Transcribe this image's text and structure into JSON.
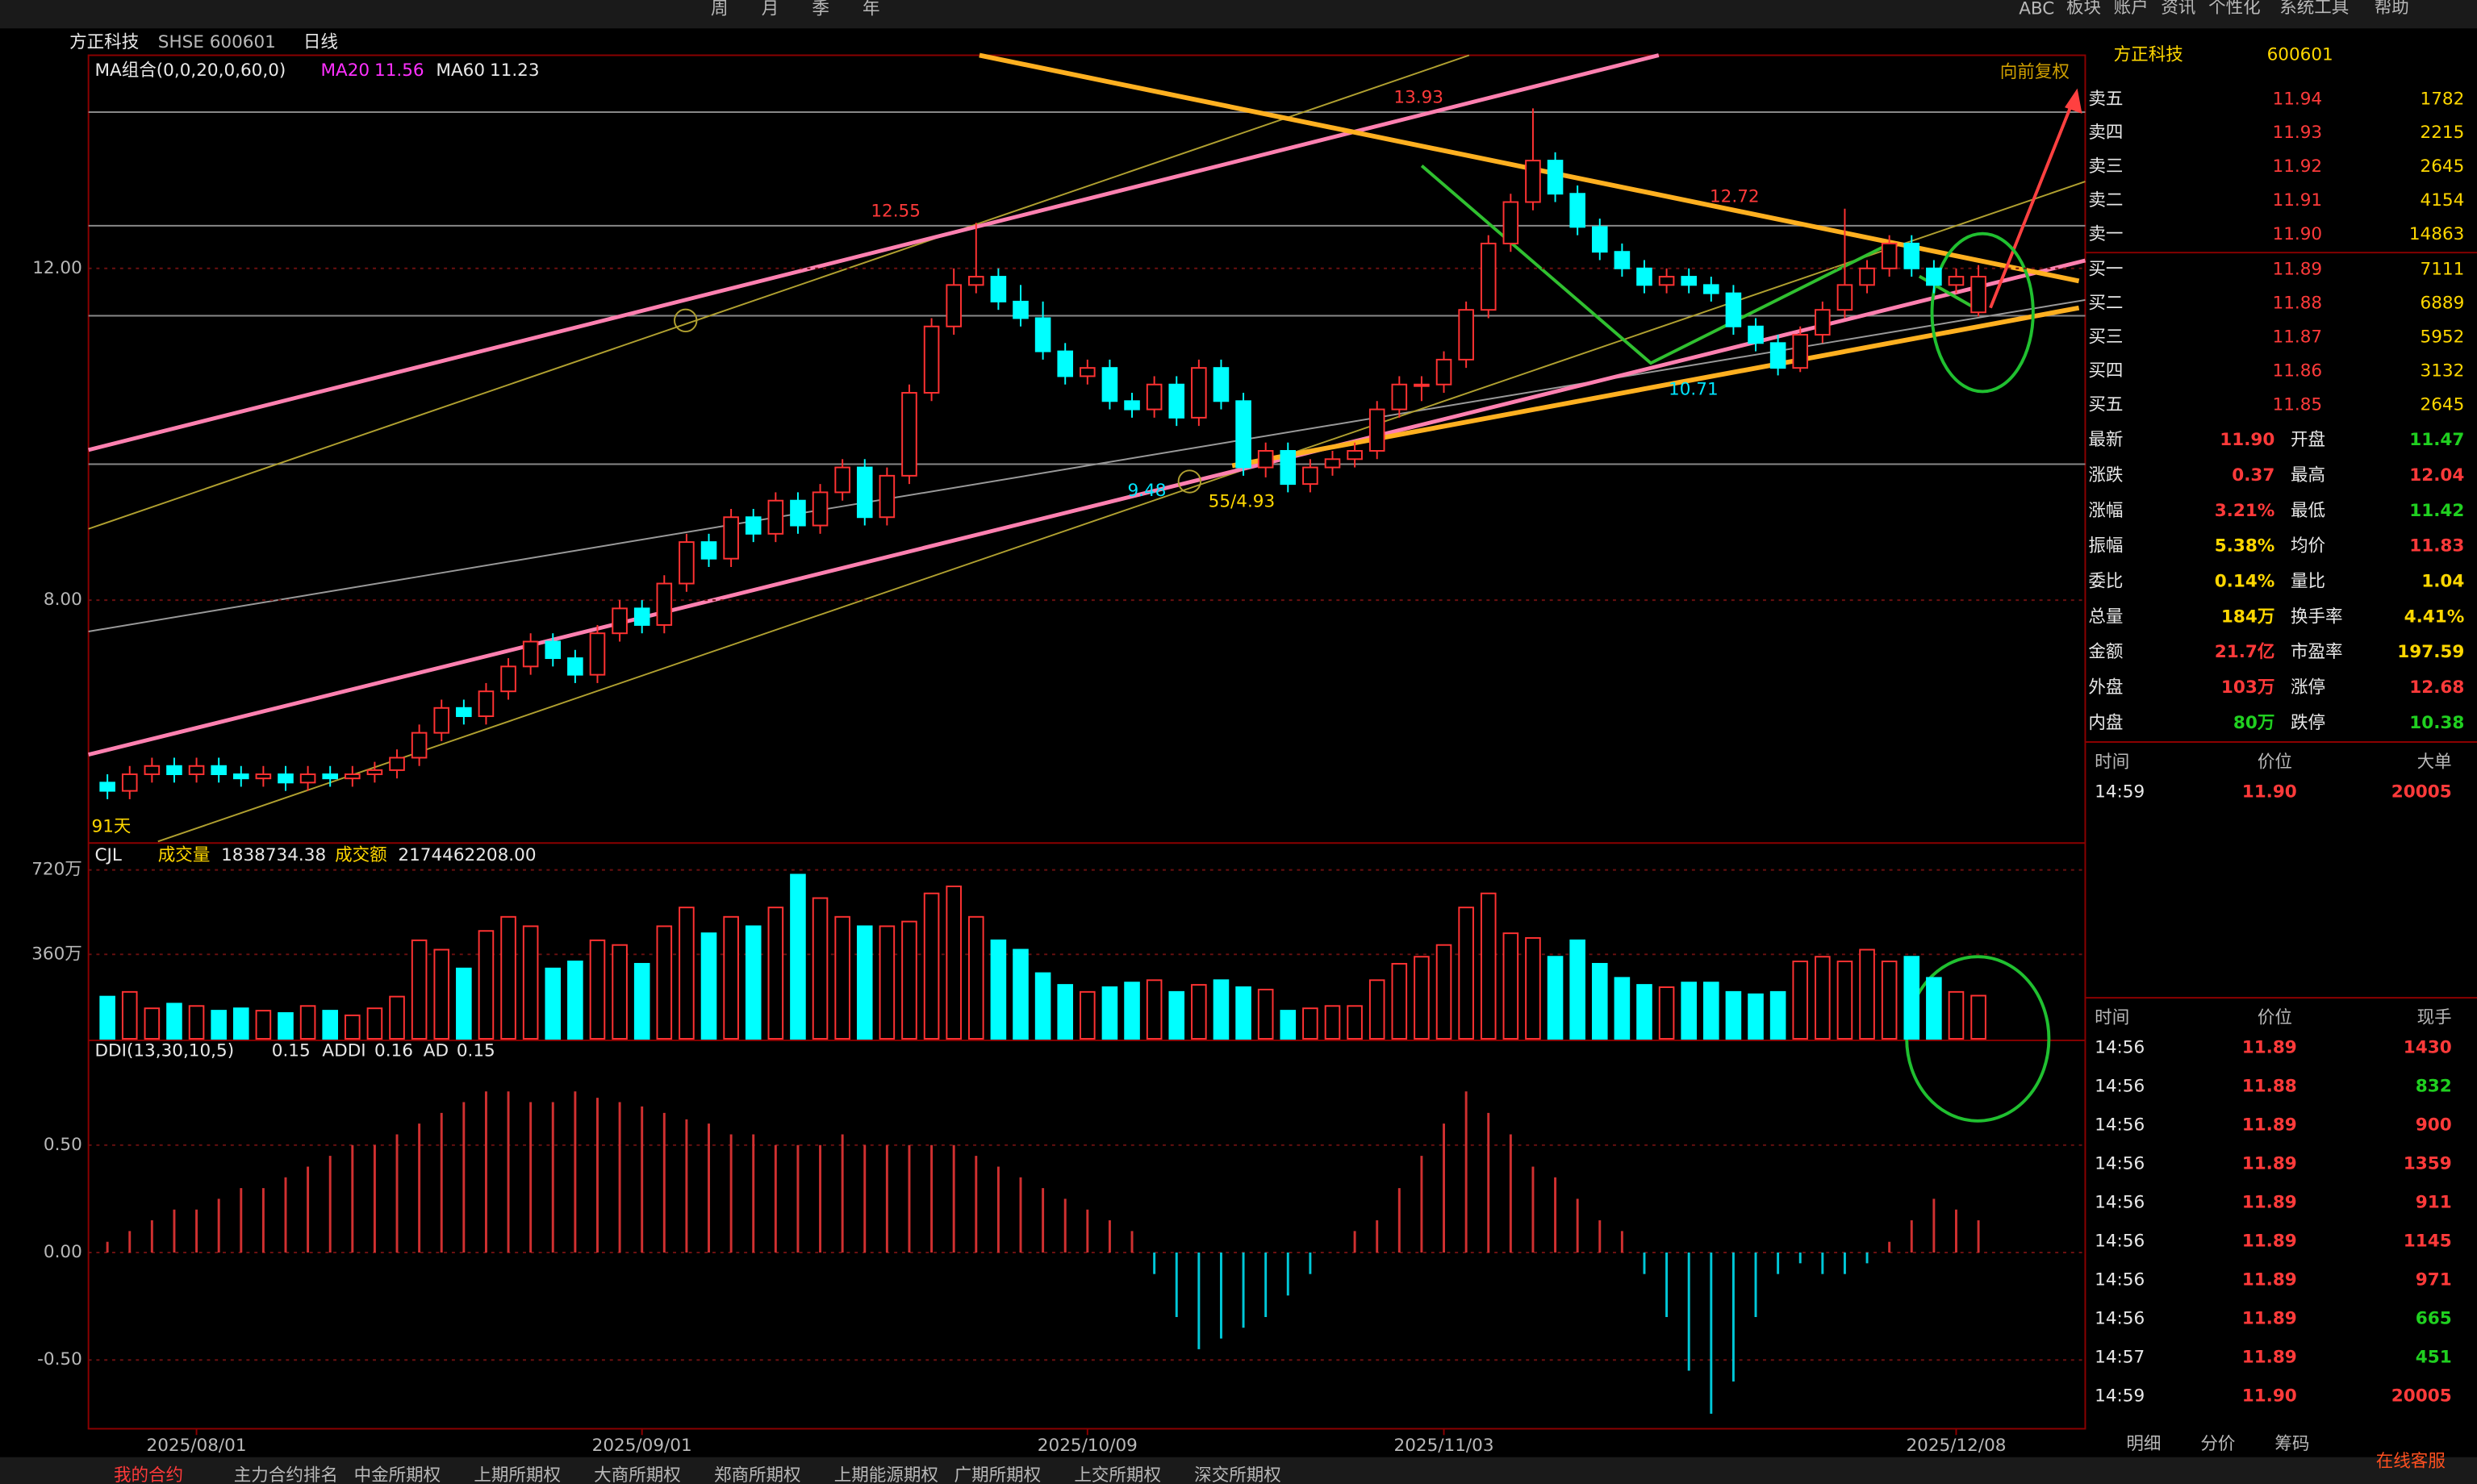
{
  "toolbar": {
    "items": [
      "周",
      "月",
      "季",
      "年",
      "ABC"
    ],
    "right_menu": [
      "板块",
      "账户",
      "资讯",
      "个性化",
      "系统工具",
      "帮助"
    ]
  },
  "header": {
    "name": "方正科技",
    "code": "SHSE 600601",
    "period": "日线"
  },
  "chart_data": [
    {
      "type": "candlestick",
      "legend": "MA组合(0,0,20,0,60,0)",
      "ma20_label": "MA20",
      "ma20": 11.56,
      "ma60_label": "MA60",
      "ma60": 11.23,
      "adjust": "向前复权",
      "days_label": "91天",
      "annotations": [
        "12.55",
        "13.93",
        "12.72",
        "10.71",
        "9.48",
        "55/4.93"
      ],
      "ylim": [
        5.09,
        14.57
      ],
      "yticks": [
        {
          "value": 12,
          "label": "12.00"
        },
        {
          "value": 8,
          "label": "8.00"
        }
      ],
      "xticks": [
        {
          "value": 4,
          "label": "2025/08/01"
        },
        {
          "value": 24,
          "label": "2025/09/01"
        },
        {
          "value": 44,
          "label": "2025/10/09"
        },
        {
          "value": 60,
          "label": "2025/11/03"
        },
        {
          "value": 83,
          "label": "2025/12/08"
        }
      ],
      "up_color": "#ff3232",
      "down_color": "#00ffff",
      "candles": [
        [
          5.8,
          5.9,
          5.6,
          5.7
        ],
        [
          5.7,
          6.0,
          5.6,
          5.9
        ],
        [
          5.9,
          6.1,
          5.8,
          6.0
        ],
        [
          6.0,
          6.1,
          5.8,
          5.9
        ],
        [
          5.9,
          6.1,
          5.8,
          6.0
        ],
        [
          6.0,
          6.1,
          5.8,
          5.9
        ],
        [
          5.9,
          6.0,
          5.75,
          5.85
        ],
        [
          5.85,
          6.0,
          5.75,
          5.9
        ],
        [
          5.9,
          6.0,
          5.7,
          5.8
        ],
        [
          5.8,
          6.0,
          5.7,
          5.9
        ],
        [
          5.9,
          6.0,
          5.75,
          5.85
        ],
        [
          5.85,
          6.0,
          5.75,
          5.9
        ],
        [
          5.9,
          6.05,
          5.8,
          5.95
        ],
        [
          5.95,
          6.2,
          5.85,
          6.1
        ],
        [
          6.1,
          6.5,
          6.0,
          6.4
        ],
        [
          6.4,
          6.8,
          6.3,
          6.7
        ],
        [
          6.7,
          6.8,
          6.5,
          6.6
        ],
        [
          6.6,
          7.0,
          6.5,
          6.9
        ],
        [
          6.9,
          7.3,
          6.8,
          7.2
        ],
        [
          7.2,
          7.6,
          7.1,
          7.5
        ],
        [
          7.5,
          7.6,
          7.2,
          7.3
        ],
        [
          7.3,
          7.4,
          7.0,
          7.1
        ],
        [
          7.1,
          7.7,
          7.0,
          7.6
        ],
        [
          7.6,
          8.0,
          7.5,
          7.9
        ],
        [
          7.9,
          8.0,
          7.6,
          7.7
        ],
        [
          7.7,
          8.3,
          7.6,
          8.2
        ],
        [
          8.2,
          8.8,
          8.1,
          8.7
        ],
        [
          8.7,
          8.8,
          8.4,
          8.5
        ],
        [
          8.5,
          9.1,
          8.4,
          9.0
        ],
        [
          9.0,
          9.1,
          8.7,
          8.8
        ],
        [
          8.8,
          9.3,
          8.7,
          9.2
        ],
        [
          9.2,
          9.3,
          8.8,
          8.9
        ],
        [
          8.9,
          9.4,
          8.8,
          9.3
        ],
        [
          9.3,
          9.7,
          9.2,
          9.6
        ],
        [
          9.6,
          9.7,
          8.9,
          9.0
        ],
        [
          9.0,
          9.6,
          8.9,
          9.5
        ],
        [
          9.5,
          10.6,
          9.4,
          10.5
        ],
        [
          10.5,
          11.4,
          10.4,
          11.3
        ],
        [
          11.3,
          12.0,
          11.2,
          11.8
        ],
        [
          11.8,
          12.55,
          11.7,
          11.9
        ],
        [
          11.9,
          12.0,
          11.5,
          11.6
        ],
        [
          11.6,
          11.8,
          11.3,
          11.4
        ],
        [
          11.4,
          11.6,
          10.9,
          11.0
        ],
        [
          11.0,
          11.1,
          10.6,
          10.7
        ],
        [
          10.7,
          10.9,
          10.6,
          10.8
        ],
        [
          10.8,
          10.9,
          10.3,
          10.4
        ],
        [
          10.4,
          10.5,
          10.2,
          10.3
        ],
        [
          10.3,
          10.7,
          10.2,
          10.6
        ],
        [
          10.6,
          10.7,
          10.1,
          10.2
        ],
        [
          10.2,
          10.9,
          10.1,
          10.8
        ],
        [
          10.8,
          10.9,
          10.3,
          10.4
        ],
        [
          10.4,
          10.5,
          9.5,
          9.6
        ],
        [
          9.6,
          9.9,
          9.48,
          9.8
        ],
        [
          9.8,
          9.9,
          9.3,
          9.4
        ],
        [
          9.4,
          9.7,
          9.3,
          9.6
        ],
        [
          9.6,
          9.8,
          9.5,
          9.7
        ],
        [
          9.7,
          9.9,
          9.6,
          9.8
        ],
        [
          9.8,
          10.4,
          9.7,
          10.3
        ],
        [
          10.3,
          10.7,
          10.2,
          10.6
        ],
        [
          10.6,
          10.7,
          10.4,
          10.6
        ],
        [
          10.6,
          11.0,
          10.5,
          10.9
        ],
        [
          10.9,
          11.6,
          10.8,
          11.5
        ],
        [
          11.5,
          12.4,
          11.4,
          12.3
        ],
        [
          12.3,
          12.9,
          12.2,
          12.8
        ],
        [
          12.8,
          13.93,
          12.7,
          13.3
        ],
        [
          13.3,
          13.4,
          12.8,
          12.9
        ],
        [
          12.9,
          13.0,
          12.4,
          12.5
        ],
        [
          12.5,
          12.6,
          12.1,
          12.2
        ],
        [
          12.2,
          12.3,
          11.9,
          12.0
        ],
        [
          12.0,
          12.1,
          11.7,
          11.8
        ],
        [
          11.8,
          12.0,
          11.7,
          11.9
        ],
        [
          11.9,
          12.0,
          11.7,
          11.8
        ],
        [
          11.8,
          11.9,
          11.6,
          11.7
        ],
        [
          11.7,
          11.8,
          11.2,
          11.3
        ],
        [
          11.3,
          11.4,
          11.0,
          11.1
        ],
        [
          11.1,
          11.2,
          10.71,
          10.8
        ],
        [
          10.8,
          11.3,
          10.75,
          11.2
        ],
        [
          11.2,
          11.6,
          11.1,
          11.5
        ],
        [
          11.5,
          12.72,
          11.4,
          11.8
        ],
        [
          11.8,
          12.1,
          11.7,
          12.0
        ],
        [
          12.0,
          12.4,
          11.9,
          12.3
        ],
        [
          12.3,
          12.4,
          11.9,
          12.0
        ],
        [
          12.0,
          12.1,
          11.7,
          11.8
        ],
        [
          11.8,
          12.0,
          11.7,
          11.9
        ],
        [
          11.47,
          12.04,
          11.42,
          11.9
        ]
      ]
    },
    {
      "type": "bar",
      "legend": "CJL",
      "volume_label": "成交量",
      "volume": 1838734.38,
      "amount_label": "成交额",
      "amount": 2174462208,
      "amount_label_text": "2174462208.00",
      "ylim": [
        0,
        828
      ],
      "yticks": [
        {
          "value": 720,
          "label": "720万"
        },
        {
          "value": 360,
          "label": "360万"
        }
      ],
      "values": [
        180,
        200,
        130,
        150,
        140,
        120,
        130,
        120,
        110,
        140,
        120,
        100,
        130,
        180,
        420,
        380,
        300,
        460,
        520,
        480,
        300,
        330,
        420,
        400,
        320,
        480,
        560,
        450,
        520,
        480,
        560,
        700,
        600,
        520,
        480,
        480,
        500,
        620,
        650,
        520,
        420,
        380,
        280,
        230,
        200,
        220,
        240,
        250,
        200,
        230,
        250,
        220,
        210,
        120,
        130,
        140,
        140,
        250,
        320,
        350,
        400,
        560,
        620,
        450,
        430,
        350,
        420,
        320,
        260,
        230,
        220,
        240,
        240,
        200,
        190,
        200,
        330,
        350,
        330,
        380,
        330,
        350,
        260,
        200,
        184
      ]
    },
    {
      "type": "bar",
      "legend": "DDI(13,30,10,5)",
      "ddi": 0.15,
      "addi_label": "ADDI",
      "addi": 0.16,
      "ad_label": "AD",
      "ad": 0.15,
      "ylim": [
        -0.82,
        0.98
      ],
      "yticks": [
        {
          "value": 0.5,
          "label": "0.50"
        },
        {
          "value": 0,
          "label": "0.00"
        },
        {
          "value": -0.5,
          "label": "-0.50"
        }
      ],
      "values": [
        0.05,
        0.1,
        0.15,
        0.2,
        0.2,
        0.25,
        0.3,
        0.3,
        0.35,
        0.4,
        0.45,
        0.5,
        0.5,
        0.55,
        0.6,
        0.65,
        0.7,
        0.75,
        0.75,
        0.7,
        0.7,
        0.75,
        0.72,
        0.7,
        0.68,
        0.65,
        0.62,
        0.6,
        0.55,
        0.55,
        0.5,
        0.5,
        0.5,
        0.55,
        0.5,
        0.5,
        0.5,
        0.5,
        0.5,
        0.45,
        0.4,
        0.35,
        0.3,
        0.25,
        0.2,
        0.15,
        0.1,
        -0.1,
        -0.3,
        -0.45,
        -0.4,
        -0.35,
        -0.3,
        -0.2,
        -0.1,
        0.0,
        0.1,
        0.15,
        0.3,
        0.45,
        0.6,
        0.75,
        0.65,
        0.55,
        0.4,
        0.35,
        0.25,
        0.15,
        0.1,
        -0.1,
        -0.3,
        -0.55,
        -0.75,
        -0.6,
        -0.3,
        -0.1,
        -0.05,
        -0.1,
        -0.1,
        -0.05,
        0.05,
        0.15,
        0.25,
        0.2,
        0.15
      ]
    }
  ],
  "quote": {
    "title": "方正科技",
    "code": "600601",
    "asks": [
      [
        "卖五",
        "11.94",
        "1782"
      ],
      [
        "卖四",
        "11.93",
        "2215"
      ],
      [
        "卖三",
        "11.92",
        "2645"
      ],
      [
        "卖二",
        "11.91",
        "4154"
      ],
      [
        "卖一",
        "11.90",
        "14863"
      ]
    ],
    "bids": [
      [
        "买一",
        "11.89",
        "7111"
      ],
      [
        "买二",
        "11.88",
        "6889"
      ],
      [
        "买三",
        "11.87",
        "5952"
      ],
      [
        "买四",
        "11.86",
        "3132"
      ],
      [
        "买五",
        "11.85",
        "2645"
      ]
    ],
    "stats": [
      [
        "最新",
        "11.90",
        "开盘",
        "11.47"
      ],
      [
        "涨跌",
        "0.37",
        "最高",
        "12.04"
      ],
      [
        "涨幅",
        "3.21%",
        "最低",
        "11.42"
      ],
      [
        "振幅",
        "5.38%",
        "均价",
        "11.83"
      ],
      [
        "委比",
        "0.14%",
        "量比",
        "1.04"
      ],
      [
        "总量",
        "184万",
        "换手率",
        "4.41%"
      ],
      [
        "金额",
        "21.7亿",
        "市盈率",
        "197.59"
      ],
      [
        "外盘",
        "103万",
        "涨停",
        "12.68"
      ],
      [
        "内盘",
        "80万",
        "跌停",
        "10.38"
      ]
    ],
    "big_header": [
      "时间",
      "价位",
      "大单"
    ],
    "big_rows": [
      [
        "14:59",
        "11.90",
        "20005"
      ]
    ],
    "tick_header": [
      "时间",
      "价位",
      "现手"
    ],
    "ticks": [
      [
        "14:56",
        "11.89",
        "1430"
      ],
      [
        "14:56",
        "11.88",
        "832"
      ],
      [
        "14:56",
        "11.89",
        "900"
      ],
      [
        "14:56",
        "11.89",
        "1359"
      ],
      [
        "14:56",
        "11.89",
        "911"
      ],
      [
        "14:56",
        "11.89",
        "1145"
      ],
      [
        "14:56",
        "11.89",
        "971"
      ],
      [
        "14:56",
        "11.89",
        "665"
      ],
      [
        "14:57",
        "11.89",
        "451"
      ],
      [
        "14:59",
        "11.90",
        "20005"
      ]
    ],
    "tabs": [
      "明细",
      "分价",
      "筹码"
    ]
  },
  "footer": {
    "tabs": [
      "我的合约",
      "主力合约排名",
      "中金所期权",
      "上期所期权",
      "大商所期权",
      "郑商所期权",
      "上期能源期权",
      "广期所期权",
      "上交所期权",
      "深交所期权"
    ],
    "service": "在线客服"
  }
}
